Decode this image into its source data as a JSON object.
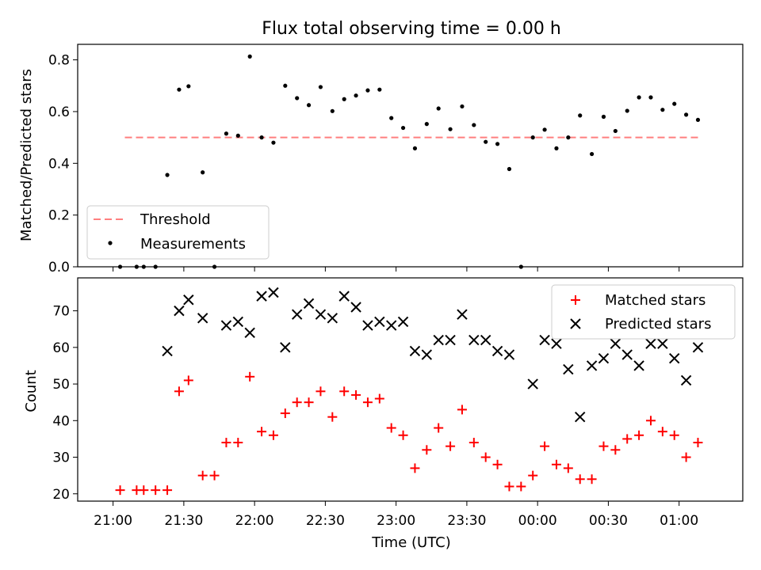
{
  "chart_data": [
    {
      "type": "scatter",
      "title": "Flux total observing time = 0.00 h",
      "ylabel": "Matched/Predicted stars",
      "xlabel": "",
      "ylim": [
        0,
        0.86
      ],
      "yticks": [
        "0.0",
        "0.2",
        "0.4",
        "0.6",
        "0.8"
      ],
      "xlim_hours": [
        20.75,
        25.45
      ],
      "legend_position": "lower-left",
      "threshold": {
        "name": "Threshold",
        "value": 0.5,
        "x_start": "21:05",
        "x_end": "01:08",
        "color": "#ff7f7f"
      },
      "series": [
        {
          "name": "Measurements",
          "color": "#000000",
          "points": [
            [
              "21:03",
              0.0
            ],
            [
              "21:10",
              0.0
            ],
            [
              "21:13",
              0.0
            ],
            [
              "21:18",
              0.0
            ],
            [
              "21:23",
              0.355
            ],
            [
              "21:28",
              0.685
            ],
            [
              "21:32",
              0.698
            ],
            [
              "21:38",
              0.365
            ],
            [
              "21:43",
              0.0
            ],
            [
              "21:48",
              0.515
            ],
            [
              "21:53",
              0.507
            ],
            [
              "21:58",
              0.813
            ],
            [
              "22:03",
              0.5
            ],
            [
              "22:08",
              0.48
            ],
            [
              "22:13",
              0.7
            ],
            [
              "22:18",
              0.652
            ],
            [
              "22:23",
              0.625
            ],
            [
              "22:28",
              0.695
            ],
            [
              "22:33",
              0.602
            ],
            [
              "22:38",
              0.648
            ],
            [
              "22:43",
              0.662
            ],
            [
              "22:48",
              0.682
            ],
            [
              "22:53",
              0.685
            ],
            [
              "22:58",
              0.575
            ],
            [
              "23:03",
              0.537
            ],
            [
              "23:08",
              0.458
            ],
            [
              "23:13",
              0.552
            ],
            [
              "23:18",
              0.612
            ],
            [
              "23:23",
              0.532
            ],
            [
              "23:28",
              0.62
            ],
            [
              "23:33",
              0.548
            ],
            [
              "23:38",
              0.483
            ],
            [
              "23:43",
              0.475
            ],
            [
              "23:48",
              0.378
            ],
            [
              "23:53",
              0.0
            ],
            [
              "23:58",
              0.5
            ],
            [
              "00:03",
              0.53
            ],
            [
              "00:08",
              0.458
            ],
            [
              "00:13",
              0.5
            ],
            [
              "00:18",
              0.585
            ],
            [
              "00:23",
              0.436
            ],
            [
              "00:28",
              0.58
            ],
            [
              "00:33",
              0.525
            ],
            [
              "00:38",
              0.603
            ],
            [
              "00:43",
              0.655
            ],
            [
              "00:48",
              0.655
            ],
            [
              "00:53",
              0.607
            ],
            [
              "00:58",
              0.63
            ],
            [
              "01:03",
              0.588
            ],
            [
              "01:08",
              0.568
            ]
          ]
        }
      ]
    },
    {
      "type": "scatter",
      "title": "",
      "ylabel": "Count",
      "xlabel": "Time (UTC)",
      "ylim": [
        18,
        79
      ],
      "yticks": [
        "20",
        "30",
        "40",
        "50",
        "60",
        "70"
      ],
      "xlim_hours": [
        20.75,
        25.45
      ],
      "xticks": [
        "21:00",
        "21:30",
        "22:00",
        "22:30",
        "23:00",
        "23:30",
        "00:00",
        "00:30",
        "01:00"
      ],
      "legend_position": "top-right",
      "series": [
        {
          "name": "Matched stars",
          "color": "#ff0000",
          "marker": "plus",
          "points": [
            [
              "21:03",
              21
            ],
            [
              "21:10",
              21
            ],
            [
              "21:13",
              21
            ],
            [
              "21:18",
              21
            ],
            [
              "21:23",
              21
            ],
            [
              "21:28",
              48
            ],
            [
              "21:32",
              51
            ],
            [
              "21:38",
              25
            ],
            [
              "21:43",
              25
            ],
            [
              "21:48",
              34
            ],
            [
              "21:53",
              34
            ],
            [
              "21:58",
              52
            ],
            [
              "22:03",
              37
            ],
            [
              "22:08",
              36
            ],
            [
              "22:13",
              42
            ],
            [
              "22:18",
              45
            ],
            [
              "22:23",
              45
            ],
            [
              "22:28",
              48
            ],
            [
              "22:33",
              41
            ],
            [
              "22:38",
              48
            ],
            [
              "22:43",
              47
            ],
            [
              "22:48",
              45
            ],
            [
              "22:53",
              46
            ],
            [
              "22:58",
              38
            ],
            [
              "23:03",
              36
            ],
            [
              "23:08",
              27
            ],
            [
              "23:13",
              32
            ],
            [
              "23:18",
              38
            ],
            [
              "23:23",
              33
            ],
            [
              "23:28",
              43
            ],
            [
              "23:33",
              34
            ],
            [
              "23:38",
              30
            ],
            [
              "23:43",
              28
            ],
            [
              "23:48",
              22
            ],
            [
              "23:53",
              22
            ],
            [
              "23:58",
              25
            ],
            [
              "00:03",
              33
            ],
            [
              "00:08",
              28
            ],
            [
              "00:13",
              27
            ],
            [
              "00:18",
              24
            ],
            [
              "00:23",
              24
            ],
            [
              "00:28",
              33
            ],
            [
              "00:33",
              32
            ],
            [
              "00:38",
              35
            ],
            [
              "00:43",
              36
            ],
            [
              "00:48",
              40
            ],
            [
              "00:53",
              37
            ],
            [
              "00:58",
              36
            ],
            [
              "01:03",
              30
            ],
            [
              "01:08",
              34
            ]
          ]
        },
        {
          "name": "Predicted stars",
          "color": "#000000",
          "marker": "x",
          "points": [
            [
              "21:23",
              59
            ],
            [
              "21:28",
              70
            ],
            [
              "21:32",
              73
            ],
            [
              "21:38",
              68
            ],
            [
              "21:48",
              66
            ],
            [
              "21:53",
              67
            ],
            [
              "21:58",
              64
            ],
            [
              "22:03",
              74
            ],
            [
              "22:08",
              75
            ],
            [
              "22:13",
              60
            ],
            [
              "22:18",
              69
            ],
            [
              "22:23",
              72
            ],
            [
              "22:28",
              69
            ],
            [
              "22:33",
              68
            ],
            [
              "22:38",
              74
            ],
            [
              "22:43",
              71
            ],
            [
              "22:48",
              66
            ],
            [
              "22:53",
              67
            ],
            [
              "22:58",
              66
            ],
            [
              "23:03",
              67
            ],
            [
              "23:08",
              59
            ],
            [
              "23:13",
              58
            ],
            [
              "23:18",
              62
            ],
            [
              "23:23",
              62
            ],
            [
              "23:28",
              69
            ],
            [
              "23:33",
              62
            ],
            [
              "23:38",
              62
            ],
            [
              "23:43",
              59
            ],
            [
              "23:48",
              58
            ],
            [
              "23:58",
              50
            ],
            [
              "00:03",
              62
            ],
            [
              "00:08",
              61
            ],
            [
              "00:13",
              54
            ],
            [
              "00:18",
              41
            ],
            [
              "00:23",
              55
            ],
            [
              "00:28",
              57
            ],
            [
              "00:33",
              61
            ],
            [
              "00:38",
              58
            ],
            [
              "00:43",
              55
            ],
            [
              "00:48",
              61
            ],
            [
              "00:53",
              61
            ],
            [
              "00:58",
              57
            ],
            [
              "01:03",
              51
            ],
            [
              "01:08",
              60
            ]
          ]
        }
      ]
    }
  ]
}
